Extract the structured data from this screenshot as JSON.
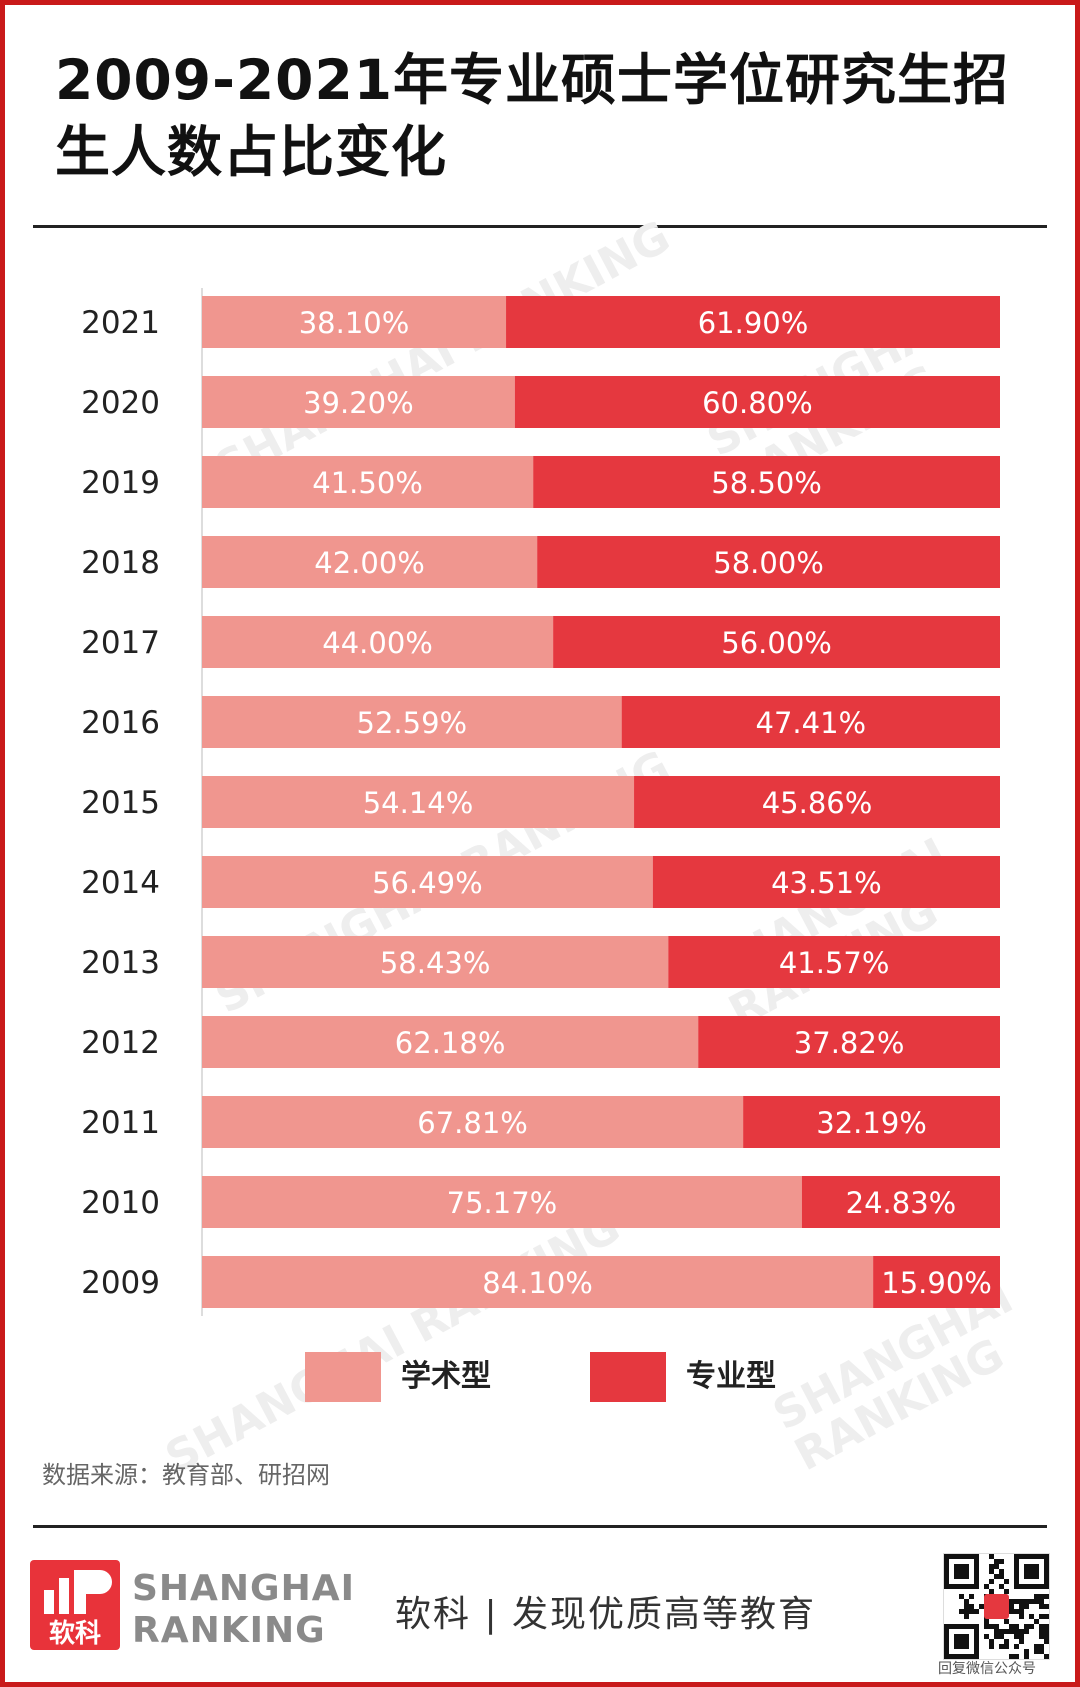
{
  "title": "2009-2021年专业硕士学位研究生招生人数占比变化",
  "source": "数据来源：教育部、研招网",
  "brand": {
    "logo_text": "软科",
    "name_line1": "SHANGHAI",
    "name_line2": "RANKING",
    "slogan": "软科 | 发现优质高等教育"
  },
  "watermark": "SHANGHAI RANKING",
  "qr_caption": "回复微信公众号",
  "colors": {
    "academic": "#f0968f",
    "professional": "#e5383f",
    "frame": "#c91a1a"
  },
  "chart_data": {
    "type": "bar",
    "stacked": true,
    "orientation": "horizontal",
    "xlim": [
      0,
      100
    ],
    "categories": [
      "2021",
      "2020",
      "2019",
      "2018",
      "2017",
      "2016",
      "2015",
      "2014",
      "2013",
      "2012",
      "2011",
      "2010",
      "2009"
    ],
    "series": [
      {
        "name": "学术型",
        "color": "#f0968f",
        "values": [
          38.1,
          39.2,
          41.5,
          42.0,
          44.0,
          52.59,
          54.14,
          56.49,
          58.43,
          62.18,
          67.81,
          75.17,
          84.1
        ],
        "labels": [
          "38.10%",
          "39.20%",
          "41.50%",
          "42.00%",
          "44.00%",
          "52.59%",
          "54.14%",
          "56.49%",
          "58.43%",
          "62.18%",
          "67.81%",
          "75.17%",
          "84.10%"
        ]
      },
      {
        "name": "专业型",
        "color": "#e5383f",
        "values": [
          61.9,
          60.8,
          58.5,
          58.0,
          56.0,
          47.41,
          45.86,
          43.51,
          41.57,
          37.82,
          32.19,
          24.83,
          15.9
        ],
        "labels": [
          "61.90%",
          "60.80%",
          "58.50%",
          "58.00%",
          "56.00%",
          "47.41%",
          "45.86%",
          "43.51%",
          "41.57%",
          "37.82%",
          "32.19%",
          "24.83%",
          "15.90%"
        ]
      }
    ],
    "legend": "bottom"
  }
}
